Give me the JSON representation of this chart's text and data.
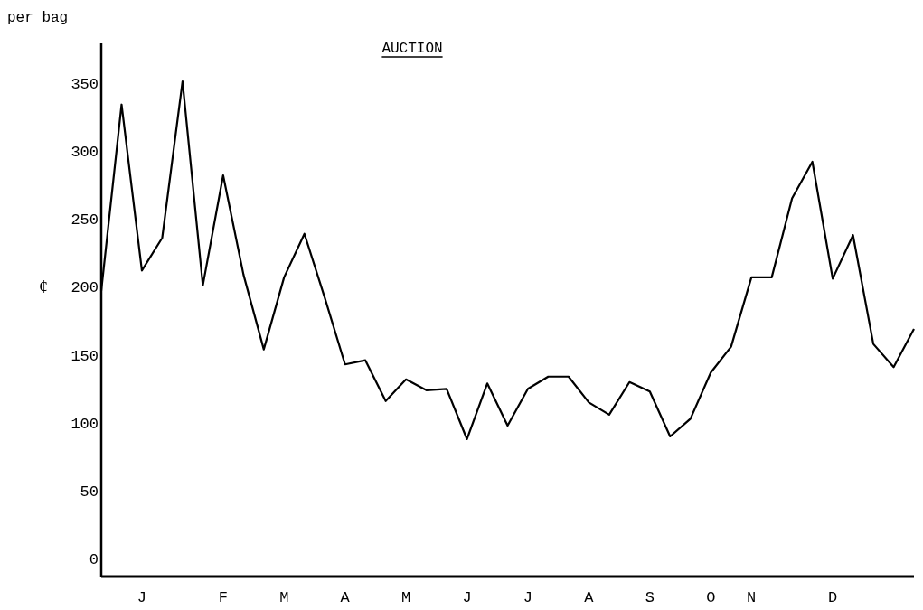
{
  "chart_data": {
    "type": "line",
    "title": "AUCTION",
    "ylabel": "¢",
    "annotations": [
      "per bag"
    ],
    "categories": [
      null,
      null,
      "J",
      null,
      null,
      null,
      "F",
      null,
      null,
      "M",
      null,
      null,
      "A",
      null,
      null,
      "M",
      null,
      null,
      "J",
      null,
      null,
      "J",
      null,
      null,
      "A",
      null,
      null,
      "S",
      null,
      null,
      "O",
      null,
      "N",
      null,
      null,
      null,
      "D",
      null,
      null,
      null,
      null
    ],
    "series": [
      {
        "color": "#000000",
        "values": [
          198,
          335,
          213,
          237,
          352,
          202,
          283,
          210,
          155,
          208,
          240,
          193,
          144,
          147,
          117,
          133,
          125,
          126,
          89,
          130,
          99,
          126,
          135,
          135,
          116,
          107,
          131,
          124,
          91,
          104,
          138,
          157,
          208,
          208,
          266,
          293,
          207,
          239,
          159,
          142,
          170
        ]
      }
    ],
    "ylim": [
      -12,
      380
    ],
    "yticks": [
      0,
      50,
      100,
      150,
      200,
      250,
      300,
      350
    ],
    "grid": false,
    "marker": "none",
    "line_style": "solid"
  }
}
